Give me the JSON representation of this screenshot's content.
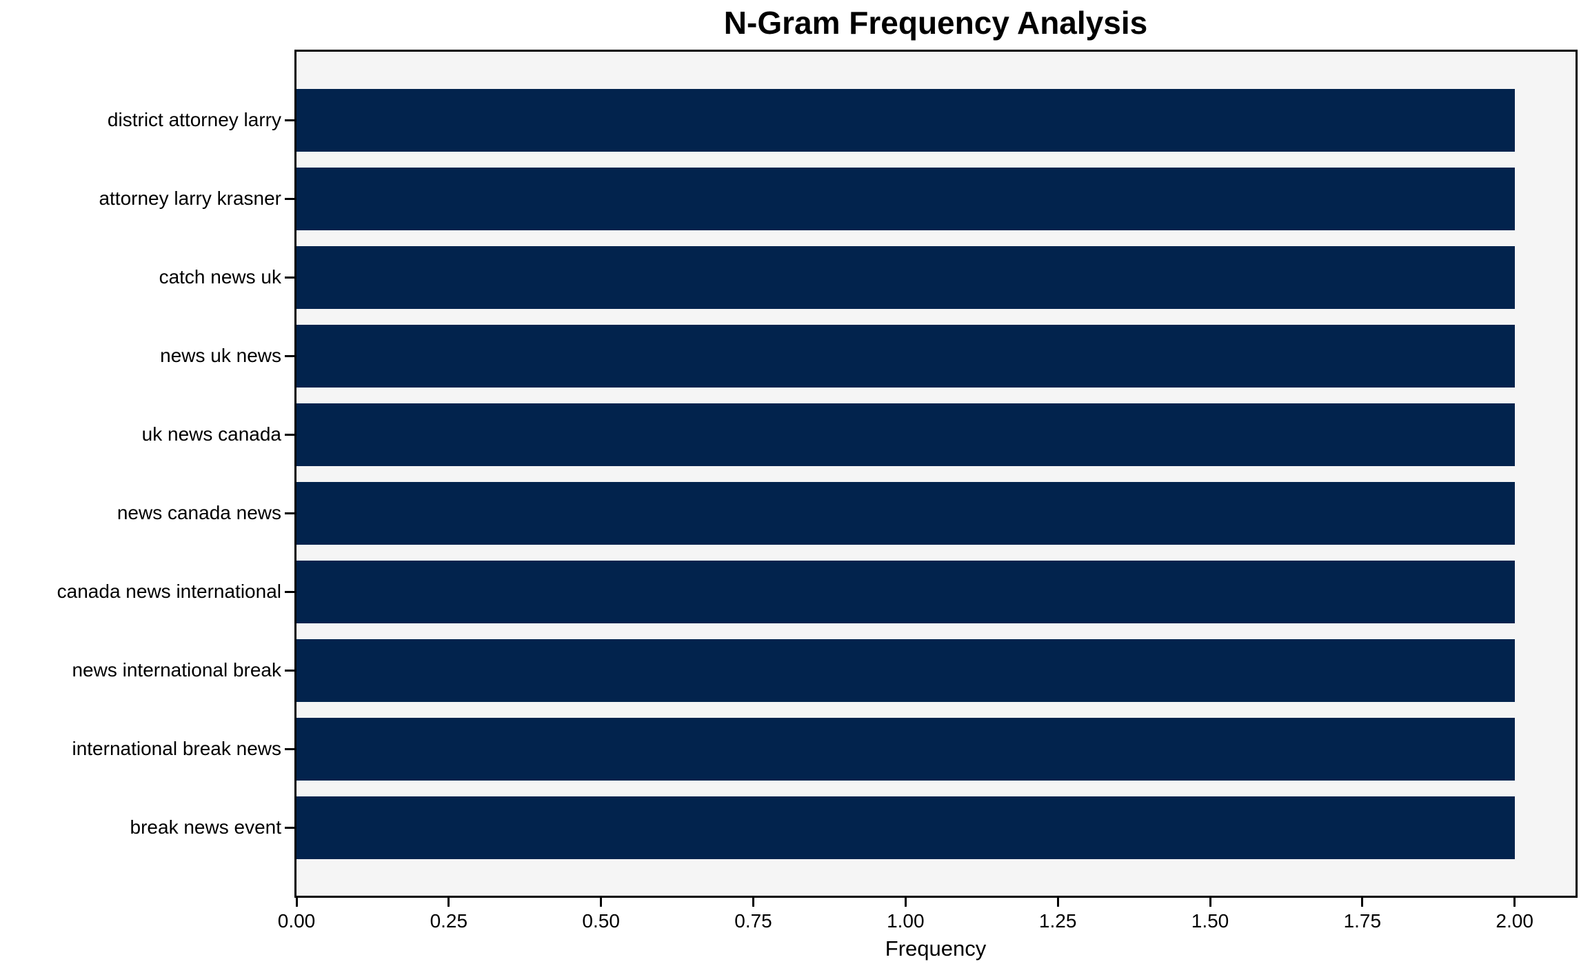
{
  "chart_data": {
    "type": "bar",
    "orientation": "horizontal",
    "title": "N-Gram Frequency Analysis",
    "xlabel": "Frequency",
    "ylabel": "",
    "categories": [
      "district attorney larry",
      "attorney larry krasner",
      "catch news uk",
      "news uk news",
      "uk news canada",
      "news canada news",
      "canada news international",
      "news international break",
      "international break news",
      "break news event"
    ],
    "values": [
      2,
      2,
      2,
      2,
      2,
      2,
      2,
      2,
      2,
      2
    ],
    "xlim": [
      0,
      2.1
    ],
    "xticks": [
      0,
      0.25,
      0.5,
      0.75,
      1,
      1.25,
      1.5,
      1.75,
      2
    ],
    "xtick_labels": [
      "0.00",
      "0.25",
      "0.50",
      "0.75",
      "1.00",
      "1.25",
      "1.50",
      "1.75",
      "2.00"
    ],
    "bar_color": "#02234d",
    "plot_background": "#f5f5f5",
    "figure_background": "#ffffff",
    "spine_color": "#000000",
    "grid": false,
    "legend": "none"
  }
}
